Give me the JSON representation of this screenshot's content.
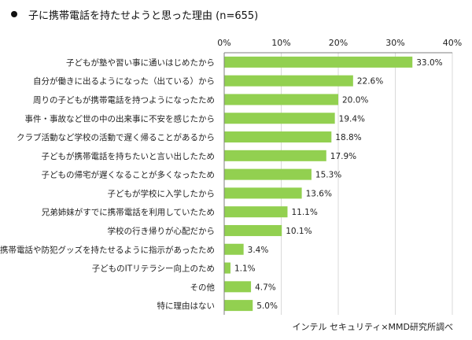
{
  "header": {
    "title": "子に携帯電話を持たせようと思った理由 (n=655)"
  },
  "footer": {
    "source": "インテル セキュリティ×MMD研究所調べ"
  },
  "colors": {
    "bar": "#92d050",
    "axis": "#7f7f7f",
    "grid": "#d9d9d9"
  },
  "chart_data": {
    "type": "bar",
    "orientation": "horizontal",
    "title": "子に携帯電話を持たせようと思った理由 (n=655)",
    "xlim": [
      0,
      40
    ],
    "ticks": [
      "0%",
      "10%",
      "20%",
      "30%",
      "40%"
    ],
    "grid": true,
    "legend": "none",
    "categories": [
      "子どもが塾や習い事に通いはじめたから",
      "自分が働きに出るようになった（出ている）から",
      "周りの子どもが携帯電話を持つようになったため",
      "事件・事故など世の中の出来事に不安を感じたから",
      "クラブ活動など学校の活動で遅く帰ることがあるから",
      "子どもが携帯電話を持ちたいと言い出したため",
      "子どもの帰宅が遅くなることが多くなったため",
      "子どもが学校に入学したから",
      "兄弟姉妹がすでに携帯電話を利用していたため",
      "学校の行き帰りが心配だから",
      "携帯電話や防犯グッズを持たせるように指示があったため",
      "子どものITリテラシー向上のため",
      "その他",
      "特に理由はない"
    ],
    "values": [
      33.0,
      22.6,
      20.0,
      19.4,
      18.8,
      17.9,
      15.3,
      13.6,
      11.1,
      10.1,
      3.4,
      1.1,
      4.7,
      5.0
    ],
    "value_labels": [
      "33.0%",
      "22.6%",
      "20.0%",
      "19.4%",
      "18.8%",
      "17.9%",
      "15.3%",
      "13.6%",
      "11.1%",
      "10.1%",
      "3.4%",
      "1.1%",
      "4.7%",
      "5.0%"
    ]
  }
}
